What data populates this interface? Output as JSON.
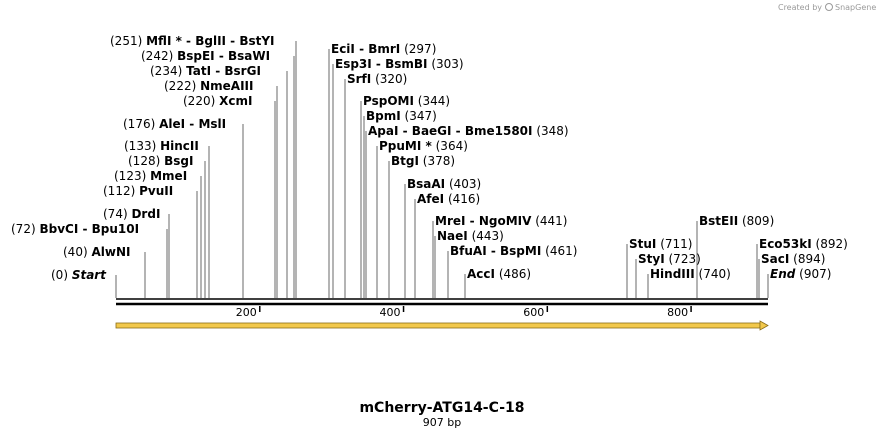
{
  "map": {
    "name": "mCherry-ATG14-C-18",
    "length_label": "907 bp",
    "length": 907,
    "credit_prefix": "Created by",
    "credit_brand": "SnapGene",
    "ticks": [
      "200",
      "400",
      "600",
      "800"
    ],
    "tick_values": [
      200,
      400,
      600,
      800
    ],
    "feature_color": "#f2c84b"
  },
  "sites": [
    {
      "pos": "(0)",
      "names": [
        "Start"
      ],
      "italic": true,
      "loc": 0
    },
    {
      "pos": "(40)",
      "names": [
        "AlwNI"
      ],
      "loc": 40
    },
    {
      "pos": "(72)",
      "names": [
        "BbvCI",
        "Bpu10I"
      ],
      "loc": 72
    },
    {
      "pos": "(74)",
      "names": [
        "DrdI"
      ],
      "loc": 74
    },
    {
      "pos": "(112)",
      "names": [
        "PvuII"
      ],
      "loc": 112
    },
    {
      "pos": "(123)",
      "names": [
        "MmeI"
      ],
      "loc": 123
    },
    {
      "pos": "(128)",
      "names": [
        "BsgI"
      ],
      "loc": 128
    },
    {
      "pos": "(133)",
      "names": [
        "HincII"
      ],
      "loc": 133
    },
    {
      "pos": "(176)",
      "names": [
        "AleI",
        "MslI"
      ],
      "loc": 176
    },
    {
      "pos": "(220)",
      "names": [
        "XcmI"
      ],
      "loc": 220
    },
    {
      "pos": "(222)",
      "names": [
        "NmeAIII"
      ],
      "loc": 222
    },
    {
      "pos": "(234)",
      "names": [
        "TatI",
        "BsrGI"
      ],
      "loc": 234
    },
    {
      "pos": "(242)",
      "names": [
        "BspEI",
        "BsaWI"
      ],
      "loc": 242
    },
    {
      "pos": "(251)",
      "names": [
        "MflI *",
        "BglII",
        "BstYI"
      ],
      "loc": 251
    },
    {
      "pos": "(297)",
      "names": [
        "EciI",
        "BmrI"
      ],
      "loc": 297
    },
    {
      "pos": "(303)",
      "names": [
        "Esp3I",
        "BsmBI"
      ],
      "loc": 303
    },
    {
      "pos": "(320)",
      "names": [
        "SrfI"
      ],
      "loc": 320
    },
    {
      "pos": "(344)",
      "names": [
        "PspOMI"
      ],
      "loc": 344
    },
    {
      "pos": "(347)",
      "names": [
        "BpmI"
      ],
      "loc": 347
    },
    {
      "pos": "(348)",
      "names": [
        "ApaI",
        "BaeGI",
        "Bme1580I"
      ],
      "loc": 348
    },
    {
      "pos": "(364)",
      "names": [
        "PpuMI *"
      ],
      "loc": 364
    },
    {
      "pos": "(378)",
      "names": [
        "BtgI"
      ],
      "loc": 378
    },
    {
      "pos": "(403)",
      "names": [
        "BsaAI"
      ],
      "loc": 403
    },
    {
      "pos": "(416)",
      "names": [
        "AfeI"
      ],
      "loc": 416
    },
    {
      "pos": "(441)",
      "names": [
        "MreI",
        "NgoMIV"
      ],
      "loc": 441
    },
    {
      "pos": "(443)",
      "names": [
        "NaeI"
      ],
      "loc": 443
    },
    {
      "pos": "(461)",
      "names": [
        "BfuAI",
        "BspMI"
      ],
      "loc": 461
    },
    {
      "pos": "(486)",
      "names": [
        "AccI"
      ],
      "loc": 486
    },
    {
      "pos": "(711)",
      "names": [
        "StuI"
      ],
      "loc": 711
    },
    {
      "pos": "(723)",
      "names": [
        "StyI"
      ],
      "loc": 723
    },
    {
      "pos": "(740)",
      "names": [
        "HindIII"
      ],
      "loc": 740
    },
    {
      "pos": "(809)",
      "names": [
        "BstEII"
      ],
      "loc": 809
    },
    {
      "pos": "(892)",
      "names": [
        "Eco53kI"
      ],
      "loc": 892
    },
    {
      "pos": "(894)",
      "names": [
        "SacI"
      ],
      "loc": 894
    },
    {
      "pos": "(907)",
      "names": [
        "End"
      ],
      "italic": true,
      "loc": 907
    }
  ]
}
